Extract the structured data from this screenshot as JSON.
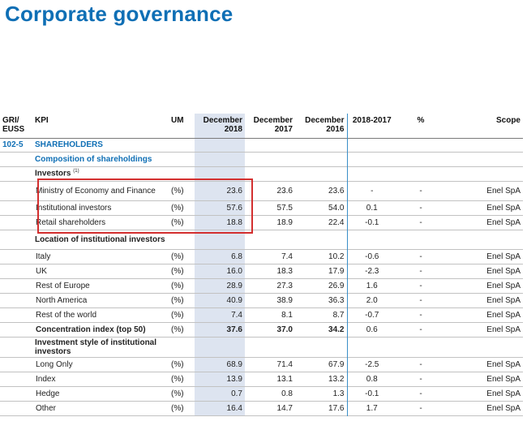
{
  "page": {
    "title": "Corporate governance"
  },
  "table": {
    "headers": {
      "gri_line1": "GRI/",
      "gri_line2": "EUSS",
      "kpi": "KPI",
      "um": "UM",
      "d2018_line1": "December",
      "d2018_line2": "2018",
      "d2017_line1": "December",
      "d2017_line2": "2017",
      "d2016_line1": "December",
      "d2016_line2": "2016",
      "diff": "2018-2017",
      "pct": "%",
      "scope": "Scope"
    },
    "gri_code": "102-5",
    "section": "SHAREHOLDERS",
    "subsection": "Composition of shareholdings",
    "investors_group": {
      "label": "Investors",
      "note": "(1)"
    },
    "investor_rows": [
      {
        "kpi": "Ministry of Economy and Finance",
        "um": "(%)",
        "d2018": "23.6",
        "d2017": "23.6",
        "d2016": "23.6",
        "diff": "-",
        "pct": "-",
        "scope": "Enel SpA"
      },
      {
        "kpi": "Institutional investors",
        "um": "(%)",
        "d2018": "57.6",
        "d2017": "57.5",
        "d2016": "54.0",
        "diff": "0.1",
        "pct": "-",
        "scope": "Enel SpA"
      },
      {
        "kpi": "Retail shareholders",
        "um": "(%)",
        "d2018": "18.8",
        "d2017": "18.9",
        "d2016": "22.4",
        "diff": "-0.1",
        "pct": "-",
        "scope": "Enel SpA"
      }
    ],
    "location_group": {
      "label": "Location of institutional investors"
    },
    "location_rows": [
      {
        "kpi": "Italy",
        "um": "(%)",
        "d2018": "6.8",
        "d2017": "7.4",
        "d2016": "10.2",
        "diff": "-0.6",
        "pct": "-",
        "scope": "Enel SpA"
      },
      {
        "kpi": "UK",
        "um": "(%)",
        "d2018": "16.0",
        "d2017": "18.3",
        "d2016": "17.9",
        "diff": "-2.3",
        "pct": "-",
        "scope": "Enel SpA"
      },
      {
        "kpi": "Rest of Europe",
        "um": "(%)",
        "d2018": "28.9",
        "d2017": "27.3",
        "d2016": "26.9",
        "diff": "1.6",
        "pct": "-",
        "scope": "Enel SpA"
      },
      {
        "kpi": "North America",
        "um": "(%)",
        "d2018": "40.9",
        "d2017": "38.9",
        "d2016": "36.3",
        "diff": "2.0",
        "pct": "-",
        "scope": "Enel SpA"
      },
      {
        "kpi": "Rest of the world",
        "um": "(%)",
        "d2018": "7.4",
        "d2017": "8.1",
        "d2016": "8.7",
        "diff": "-0.7",
        "pct": "-",
        "scope": "Enel SpA"
      }
    ],
    "concentration_row": {
      "kpi": "Concentration index (top 50)",
      "um": "(%)",
      "d2018": "37.6",
      "d2017": "37.0",
      "d2016": "34.2",
      "diff": "0.6",
      "pct": "-",
      "scope": "Enel SpA"
    },
    "style_group": {
      "label": "Investment style of institutional investors"
    },
    "style_rows": [
      {
        "kpi": "Long Only",
        "um": "(%)",
        "d2018": "68.9",
        "d2017": "71.4",
        "d2016": "67.9",
        "diff": "-2.5",
        "pct": "-",
        "scope": "Enel SpA"
      },
      {
        "kpi": "Index",
        "um": "(%)",
        "d2018": "13.9",
        "d2017": "13.1",
        "d2016": "13.2",
        "diff": "0.8",
        "pct": "-",
        "scope": "Enel SpA"
      },
      {
        "kpi": "Hedge",
        "um": "(%)",
        "d2018": "0.7",
        "d2017": "0.8",
        "d2016": "1.3",
        "diff": "-0.1",
        "pct": "-",
        "scope": "Enel SpA"
      },
      {
        "kpi": "Other",
        "um": "(%)",
        "d2018": "16.4",
        "d2017": "14.7",
        "d2016": "17.6",
        "diff": "1.7",
        "pct": "-",
        "scope": "Enel SpA"
      }
    ]
  },
  "colors": {
    "title_blue": "#0f6fb5",
    "highlight_red": "#d32f2f",
    "column_shade": "#dde4f0",
    "separator_blue": "#3a8fc8"
  }
}
